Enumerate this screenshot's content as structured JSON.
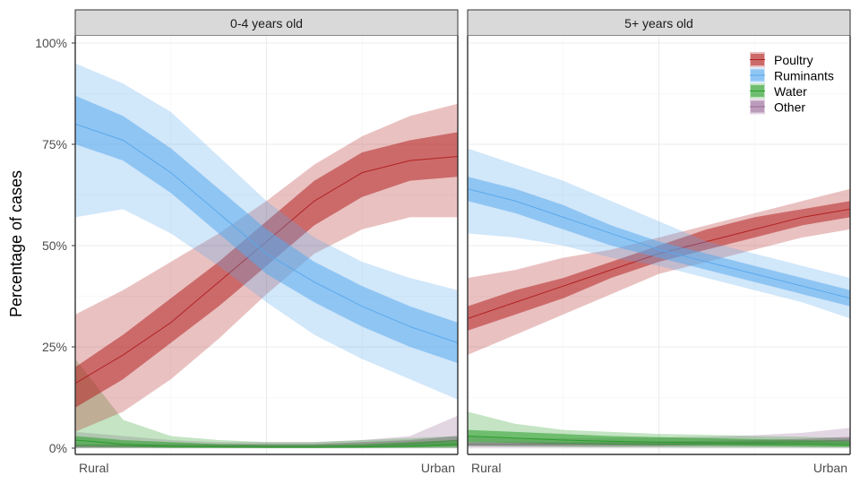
{
  "chart_data": {
    "type": "area",
    "ylabel": "Percentage of cases",
    "xlabel": "",
    "x": [
      0,
      0.125,
      0.25,
      0.375,
      0.5,
      0.625,
      0.75,
      0.875,
      1
    ],
    "x_tick_labels": {
      "start": "Rural",
      "end": "Urban"
    },
    "ylim": [
      0,
      100
    ],
    "y_ticks": [
      0,
      25,
      50,
      75,
      100
    ],
    "y_tick_labels": [
      "0%",
      "25%",
      "50%",
      "75%",
      "100%"
    ],
    "grid": true,
    "legend_position": "top-right",
    "legend": [
      "Poultry",
      "Ruminants",
      "Water",
      "Other"
    ],
    "colors": {
      "Poultry": "#b22222",
      "Ruminants": "#5aa9ec",
      "Water": "#2a9d2a",
      "Other": "#9b6b99"
    },
    "panels": [
      {
        "title": "0-4 years old",
        "series": [
          {
            "name": "Poultry",
            "values": [
              16,
              23,
              31,
              41,
              51,
              61,
              68,
              71,
              72
            ],
            "inner_lower": [
              10,
              17,
              26,
              35,
              45,
              55,
              62,
              66,
              67
            ],
            "inner_upper": [
              20,
              28,
              37,
              46,
              56,
              66,
              73,
              76,
              78
            ],
            "outer_lower": [
              4,
              9,
              17,
              27,
              38,
              48,
              54,
              57,
              57
            ],
            "outer_upper": [
              33,
              39,
              46,
              53,
              61,
              70,
              77,
              82,
              85
            ]
          },
          {
            "name": "Ruminants",
            "values": [
              80,
              76,
              68,
              58,
              48,
              41,
              35,
              30,
              26
            ],
            "inner_lower": [
              75,
              71,
              63,
              53,
              43,
              36,
              30,
              25,
              21
            ],
            "inner_upper": [
              87,
              82,
              74,
              64,
              54,
              46,
              40,
              35,
              31
            ],
            "outer_lower": [
              57,
              59,
              53,
              45,
              36,
              28,
              22,
              17,
              12
            ],
            "outer_upper": [
              95,
              90,
              83,
              72,
              61,
              52,
              46,
              42,
              39
            ]
          },
          {
            "name": "Water",
            "values": [
              2,
              1,
              0.5,
              0.3,
              0.2,
              0.2,
              0.3,
              0.5,
              1
            ],
            "inner_lower": [
              0.5,
              0.3,
              0.1,
              0.1,
              0.1,
              0.1,
              0.1,
              0.2,
              0.3
            ],
            "inner_upper": [
              3,
              2,
              1.5,
              1,
              0.8,
              0.8,
              1,
              1.5,
              2
            ],
            "outer_lower": [
              0,
              0,
              0,
              0,
              0,
              0,
              0,
              0,
              0
            ],
            "outer_upper": [
              22,
              7,
              3,
              2,
              1.5,
              1.5,
              2,
              2.5,
              3
            ]
          },
          {
            "name": "Other",
            "values": [
              0.5,
              0.5,
              0.5,
              0.5,
              0.5,
              0.5,
              0.5,
              1,
              2
            ],
            "inner_lower": [
              0.2,
              0.2,
              0.2,
              0.2,
              0.2,
              0.2,
              0.2,
              0.3,
              0.5
            ],
            "inner_upper": [
              1,
              1,
              1,
              1,
              1,
              1,
              1.5,
              2,
              3
            ],
            "outer_lower": [
              0,
              0,
              0,
              0,
              0,
              0,
              0,
              0,
              0
            ],
            "outer_upper": [
              4,
              3,
              2,
              1.5,
              1.5,
              1.5,
              2,
              3,
              8
            ]
          }
        ]
      },
      {
        "title": "5+ years old",
        "series": [
          {
            "name": "Poultry",
            "values": [
              32,
              36,
              40,
              44,
              48,
              51,
              54,
              57,
              59
            ],
            "inner_lower": [
              29,
              33,
              37,
              42,
              46,
              49,
              52,
              55,
              57
            ],
            "inner_upper": [
              35,
              39,
              42,
              46,
              50,
              54,
              57,
              59,
              61
            ],
            "outer_lower": [
              23,
              28,
              33,
              38,
              43,
              46,
              49,
              52,
              54
            ],
            "outer_upper": [
              42,
              44,
              47,
              49,
              52,
              55,
              58,
              61,
              64
            ]
          },
          {
            "name": "Ruminants",
            "values": [
              64,
              61,
              57,
              53,
              49,
              46,
              43,
              40,
              37
            ],
            "inner_lower": [
              61,
              58,
              54,
              50,
              47,
              44,
              41,
              38,
              35
            ],
            "inner_upper": [
              67,
              64,
              60,
              55,
              51,
              48,
              45,
              42,
              39
            ],
            "outer_lower": [
              53,
              52,
              50,
              47,
              45,
              42,
              39,
              36,
              32
            ],
            "outer_upper": [
              74,
              70,
              66,
              61,
              56,
              51,
              48,
              45,
              42
            ]
          },
          {
            "name": "Water",
            "values": [
              3,
              2.5,
              2,
              1.7,
              1.5,
              1.3,
              1.1,
              1,
              0.8
            ],
            "inner_lower": [
              1.5,
              1.3,
              1,
              0.8,
              0.7,
              0.6,
              0.5,
              0.4,
              0.3
            ],
            "inner_upper": [
              4.5,
              4,
              3.5,
              3,
              2.7,
              2.5,
              2.2,
              2,
              1.8
            ],
            "outer_lower": [
              0.5,
              0.4,
              0.3,
              0.2,
              0.2,
              0.1,
              0.1,
              0.1,
              0.1
            ],
            "outer_upper": [
              9,
              6,
              4.5,
              4,
              3.5,
              3.3,
              3,
              2.8,
              2.5
            ]
          },
          {
            "name": "Other",
            "values": [
              1,
              1,
              1,
              1,
              1,
              1.2,
              1.4,
              1.6,
              2
            ],
            "inner_lower": [
              0.5,
              0.5,
              0.5,
              0.5,
              0.5,
              0.6,
              0.7,
              0.8,
              1
            ],
            "inner_upper": [
              1.5,
              1.5,
              1.5,
              1.5,
              1.6,
              1.8,
              2,
              2.3,
              2.8
            ],
            "outer_lower": [
              0.1,
              0.1,
              0.1,
              0.1,
              0.1,
              0.1,
              0.1,
              0.1,
              0.1
            ],
            "outer_upper": [
              3,
              2.5,
              2.5,
              2.5,
              2.6,
              2.8,
              3.2,
              3.8,
              5
            ]
          }
        ]
      }
    ]
  }
}
